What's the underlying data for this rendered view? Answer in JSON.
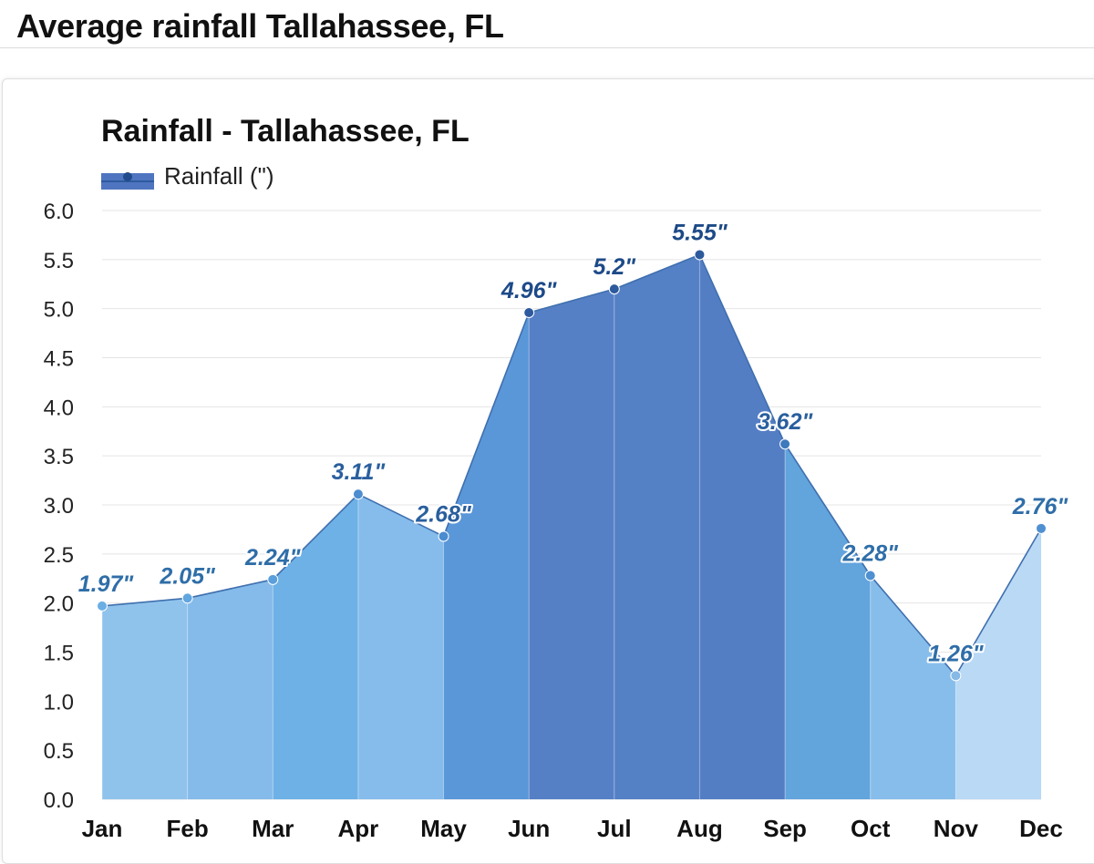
{
  "page": {
    "heading": "Average rainfall Tallahassee, FL"
  },
  "colors": {
    "legend": "#4f75c0",
    "line": "#3f6fae",
    "grid": "#e4e4e4",
    "month_fills": [
      "#8fc3ec",
      "#85bbea",
      "#6db1e6",
      "#86bceb",
      "#5a97d9",
      "#5680c6",
      "#5480c6",
      "#547ec4",
      "#62a4dc",
      "#87bdeb",
      "#b9d9f5",
      "#84b7e7"
    ],
    "marker_colors": [
      "#6aaee4",
      "#62a6e0",
      "#5a9fdc",
      "#4d8dd0",
      "#4b8bd0",
      "#2e5aa0",
      "#2c5a9c",
      "#2c5a9c",
      "#3d79bd",
      "#4f90d1",
      "#86b9e6",
      "#4f90d1"
    ],
    "label_colors": [
      "#2f6ea8",
      "#2f6ea8",
      "#2f6ea8",
      "#2a5f9e",
      "#2a5f9e",
      "#1d4a88",
      "#1d4a88",
      "#1d4a88",
      "#2a5f9e",
      "#2f6ea8",
      "#2f6ea8",
      "#2f6ea8"
    ]
  },
  "chart_data": {
    "type": "area",
    "title": "Rainfall - Tallahassee, FL",
    "categories": [
      "Jan",
      "Feb",
      "Mar",
      "Apr",
      "May",
      "Jun",
      "Jul",
      "Aug",
      "Sep",
      "Oct",
      "Nov",
      "Dec"
    ],
    "series": [
      {
        "name": "Rainfall (\")",
        "values": [
          1.97,
          2.05,
          2.24,
          3.11,
          2.68,
          4.96,
          5.2,
          5.55,
          3.62,
          2.28,
          1.26,
          2.76
        ],
        "labels": [
          "1.97\"",
          "2.05\"",
          "2.24\"",
          "3.11\"",
          "2.68\"",
          "4.96\"",
          "5.2\"",
          "5.55\"",
          "3.62\"",
          "2.28\"",
          "1.26\"",
          "2.76\""
        ]
      }
    ],
    "y_ticks": [
      "0.0",
      "0.5",
      "1.0",
      "1.5",
      "2.0",
      "2.5",
      "3.0",
      "3.5",
      "4.0",
      "4.5",
      "5.0",
      "5.5",
      "6.0"
    ],
    "ylim": [
      0,
      6
    ],
    "grid": true,
    "legend_position": "top-left"
  }
}
